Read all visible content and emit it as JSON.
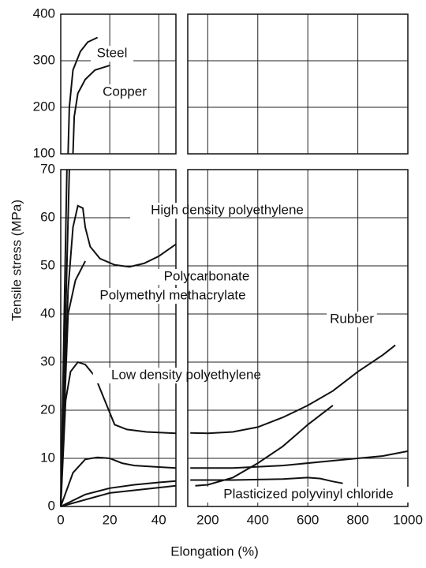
{
  "chart_data": {
    "type": "line",
    "xlabel": "Elongation (%)",
    "ylabel": "Tensile stress (MPa)",
    "grid": true,
    "color": "#111111",
    "columns": [
      {
        "xlim": [
          0,
          47
        ],
        "xticks": [
          0,
          20,
          40
        ]
      },
      {
        "xlim": [
          120,
          1000
        ],
        "xticks": [
          200,
          400,
          600,
          800,
          1000
        ]
      }
    ],
    "rows": [
      {
        "ylim": [
          100,
          400
        ],
        "yticks": [
          100,
          200,
          300,
          400
        ]
      },
      {
        "ylim": [
          0,
          70
        ],
        "yticks": [
          0,
          10,
          20,
          30,
          40,
          50,
          60,
          70
        ]
      }
    ],
    "panels": [
      {
        "row": 0,
        "col": 0,
        "series": [
          {
            "name": "Steel",
            "x": [
              3,
              3.5,
              5,
              8,
              11,
              15
            ],
            "values": [
              100,
              200,
              280,
              320,
              340,
              350
            ]
          },
          {
            "name": "Copper",
            "x": [
              5,
              5.5,
              7,
              10,
              14,
              20
            ],
            "values": [
              100,
              180,
              230,
              260,
              280,
              290
            ]
          }
        ]
      },
      {
        "row": 0,
        "col": 1,
        "series": []
      },
      {
        "row": 1,
        "col": 0,
        "series": [
          {
            "x": [
              0,
              2.5
            ],
            "values": [
              0,
              70
            ]
          },
          {
            "x": [
              0,
              3.5
            ],
            "values": [
              0,
              70
            ]
          },
          {
            "name": "Polycarbonate",
            "x": [
              0,
              3,
              5,
              7,
              9,
              10,
              12,
              16,
              22,
              28,
              34,
              40,
              47
            ],
            "values": [
              0,
              45,
              58,
              62.5,
              62,
              58,
              54,
              51.5,
              50.2,
              49.8,
              50.5,
              52,
              54.5
            ]
          },
          {
            "name": "Polymethyl methacrylate",
            "x": [
              0,
              3,
              6,
              10
            ],
            "values": [
              0,
              40,
              47,
              51
            ]
          },
          {
            "name": "High density polyethylene",
            "x": [
              0,
              2,
              4,
              7,
              10,
              14,
              18,
              22,
              27,
              35,
              47
            ],
            "values": [
              0,
              22,
              28,
              30,
              29.5,
              27,
              22,
              17,
              16,
              15.5,
              15.2
            ]
          },
          {
            "name": "Low density polyethylene",
            "x": [
              0,
              5,
              10,
              15,
              20,
              25,
              30,
              40,
              47
            ],
            "values": [
              0,
              7,
              9.8,
              10.2,
              10,
              9,
              8.5,
              8.2,
              8
            ]
          },
          {
            "x": [
              0,
              20,
              47
            ],
            "values": [
              0,
              2.8,
              4.3
            ]
          },
          {
            "x": [
              0,
              10,
              20,
              30,
              40,
              47
            ],
            "values": [
              0,
              2.5,
              3.8,
              4.5,
              5,
              5.3
            ]
          }
        ]
      },
      {
        "row": 1,
        "col": 1,
        "series": [
          {
            "x": [
              130,
              200,
              300,
              400,
              500,
              600,
              700,
              800,
              900,
              950
            ],
            "values": [
              15.3,
              15.2,
              15.5,
              16.5,
              18.5,
              21,
              24,
              28,
              31.5,
              33.5
            ]
          },
          {
            "x": [
              130,
              300,
              500,
              700,
              900,
              1000
            ],
            "values": [
              8,
              8,
              8.5,
              9.5,
              10.5,
              11.5
            ]
          },
          {
            "name": "Rubber",
            "x": [
              150,
              200,
              300,
              400,
              500,
              600,
              700
            ],
            "values": [
              4.3,
              4.5,
              6,
              9,
              12.5,
              17,
              21
            ]
          },
          {
            "name": "Plasticized polyvinyl chloride",
            "x": [
              130,
              300,
              500,
              600,
              650,
              700,
              740
            ],
            "values": [
              5.5,
              5.5,
              5.7,
              6,
              5.8,
              5.2,
              4.8
            ]
          }
        ]
      }
    ]
  }
}
